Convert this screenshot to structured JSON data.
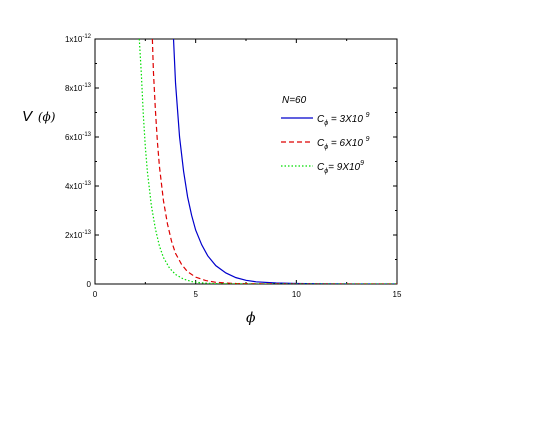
{
  "chart_data": {
    "type": "line",
    "xlabel": "ϕ",
    "ylabel": {
      "main": "V",
      "arg": "ϕ"
    },
    "xlim": [
      0,
      15
    ],
    "ylim": [
      0,
      1e-12
    ],
    "x_ticks": [
      {
        "value": 0,
        "label": "0"
      },
      {
        "value": 5,
        "label": "5"
      },
      {
        "value": 10,
        "label": "10"
      },
      {
        "value": 15,
        "label": "15"
      }
    ],
    "y_ticks": [
      {
        "value": 0,
        "base": "0",
        "exp": ""
      },
      {
        "value": 2e-13,
        "base": "2x10",
        "exp": "-13"
      },
      {
        "value": 4e-13,
        "base": "4x10",
        "exp": "-13"
      },
      {
        "value": 6e-13,
        "base": "6x10",
        "exp": "-13"
      },
      {
        "value": 8e-13,
        "base": "8x10",
        "exp": "-13"
      },
      {
        "value": 1e-12,
        "base": "1x10",
        "exp": "-12"
      }
    ],
    "annotation": "N=60",
    "grid": false,
    "legend_position": "top-right",
    "series": [
      {
        "legend_main": "C",
        "legend_sub": "ϕ",
        "legend_rest": " = 3X10 ",
        "legend_exp": "9",
        "color": "#0000cc",
        "dash": "solid",
        "x": [
          3.9,
          4.0,
          4.2,
          4.4,
          4.6,
          4.8,
          5.0,
          5.3,
          5.6,
          6.0,
          6.5,
          7.0,
          7.5,
          8.0,
          9.0,
          10.0,
          11.0,
          12.0,
          13.0,
          14.0,
          15.0
        ],
        "y": [
          1e-12,
          8.2e-13,
          6e-13,
          4.6e-13,
          3.55e-13,
          2.8e-13,
          2.2e-13,
          1.6e-13,
          1.15e-13,
          7.5e-14,
          4.5e-14,
          2.6e-14,
          1.5e-14,
          9e-15,
          4e-15,
          2e-15,
          1e-15,
          5e-16,
          2e-16,
          1e-16,
          0
        ]
      },
      {
        "legend_main": "C",
        "legend_sub": "ϕ",
        "legend_rest": " = 6X10 ",
        "legend_exp": "9",
        "color": "#dd0000",
        "dash": "dashed",
        "x": [
          2.85,
          2.9,
          3.0,
          3.1,
          3.2,
          3.4,
          3.6,
          3.8,
          4.0,
          4.3,
          4.6,
          5.0,
          5.5,
          6.0,
          6.5,
          7.0,
          8.0,
          9.0,
          10.0,
          11.0,
          12.0,
          13.0,
          14.0,
          15.0
        ],
        "y": [
          1e-12,
          8.7e-13,
          7.1e-13,
          5.8e-13,
          4.8e-13,
          3.4e-13,
          2.45e-13,
          1.75e-13,
          1.25e-13,
          8e-14,
          5e-14,
          2.8e-14,
          1.4e-14,
          7e-15,
          4e-15,
          2e-15,
          1e-15,
          5e-16,
          2e-16,
          1e-16,
          0,
          0,
          0,
          0
        ]
      },
      {
        "legend_main": "C",
        "legend_sub": "ϕ",
        "legend_rest": "= 9X10",
        "legend_exp": "9",
        "color": "#00dd00",
        "dash": "dotted",
        "x": [
          2.2,
          2.3,
          2.4,
          2.5,
          2.6,
          2.8,
          3.0,
          3.2,
          3.4,
          3.7,
          4.0,
          4.4,
          4.8,
          5.2,
          5.6,
          6.0,
          7.0,
          8.0,
          9.0,
          10.0,
          11.0,
          12.0,
          13.0,
          14.0,
          15.0
        ],
        "y": [
          1e-12,
          8.6e-13,
          6.9e-13,
          5.6e-13,
          4.6e-13,
          3.2e-13,
          2.25e-13,
          1.55e-13,
          1.08e-13,
          6.5e-14,
          3.9e-14,
          2e-14,
          1e-14,
          5.5e-15,
          3e-15,
          1.5e-15,
          5e-16,
          2e-16,
          1e-16,
          0,
          0,
          0,
          0,
          0,
          0
        ]
      }
    ]
  }
}
